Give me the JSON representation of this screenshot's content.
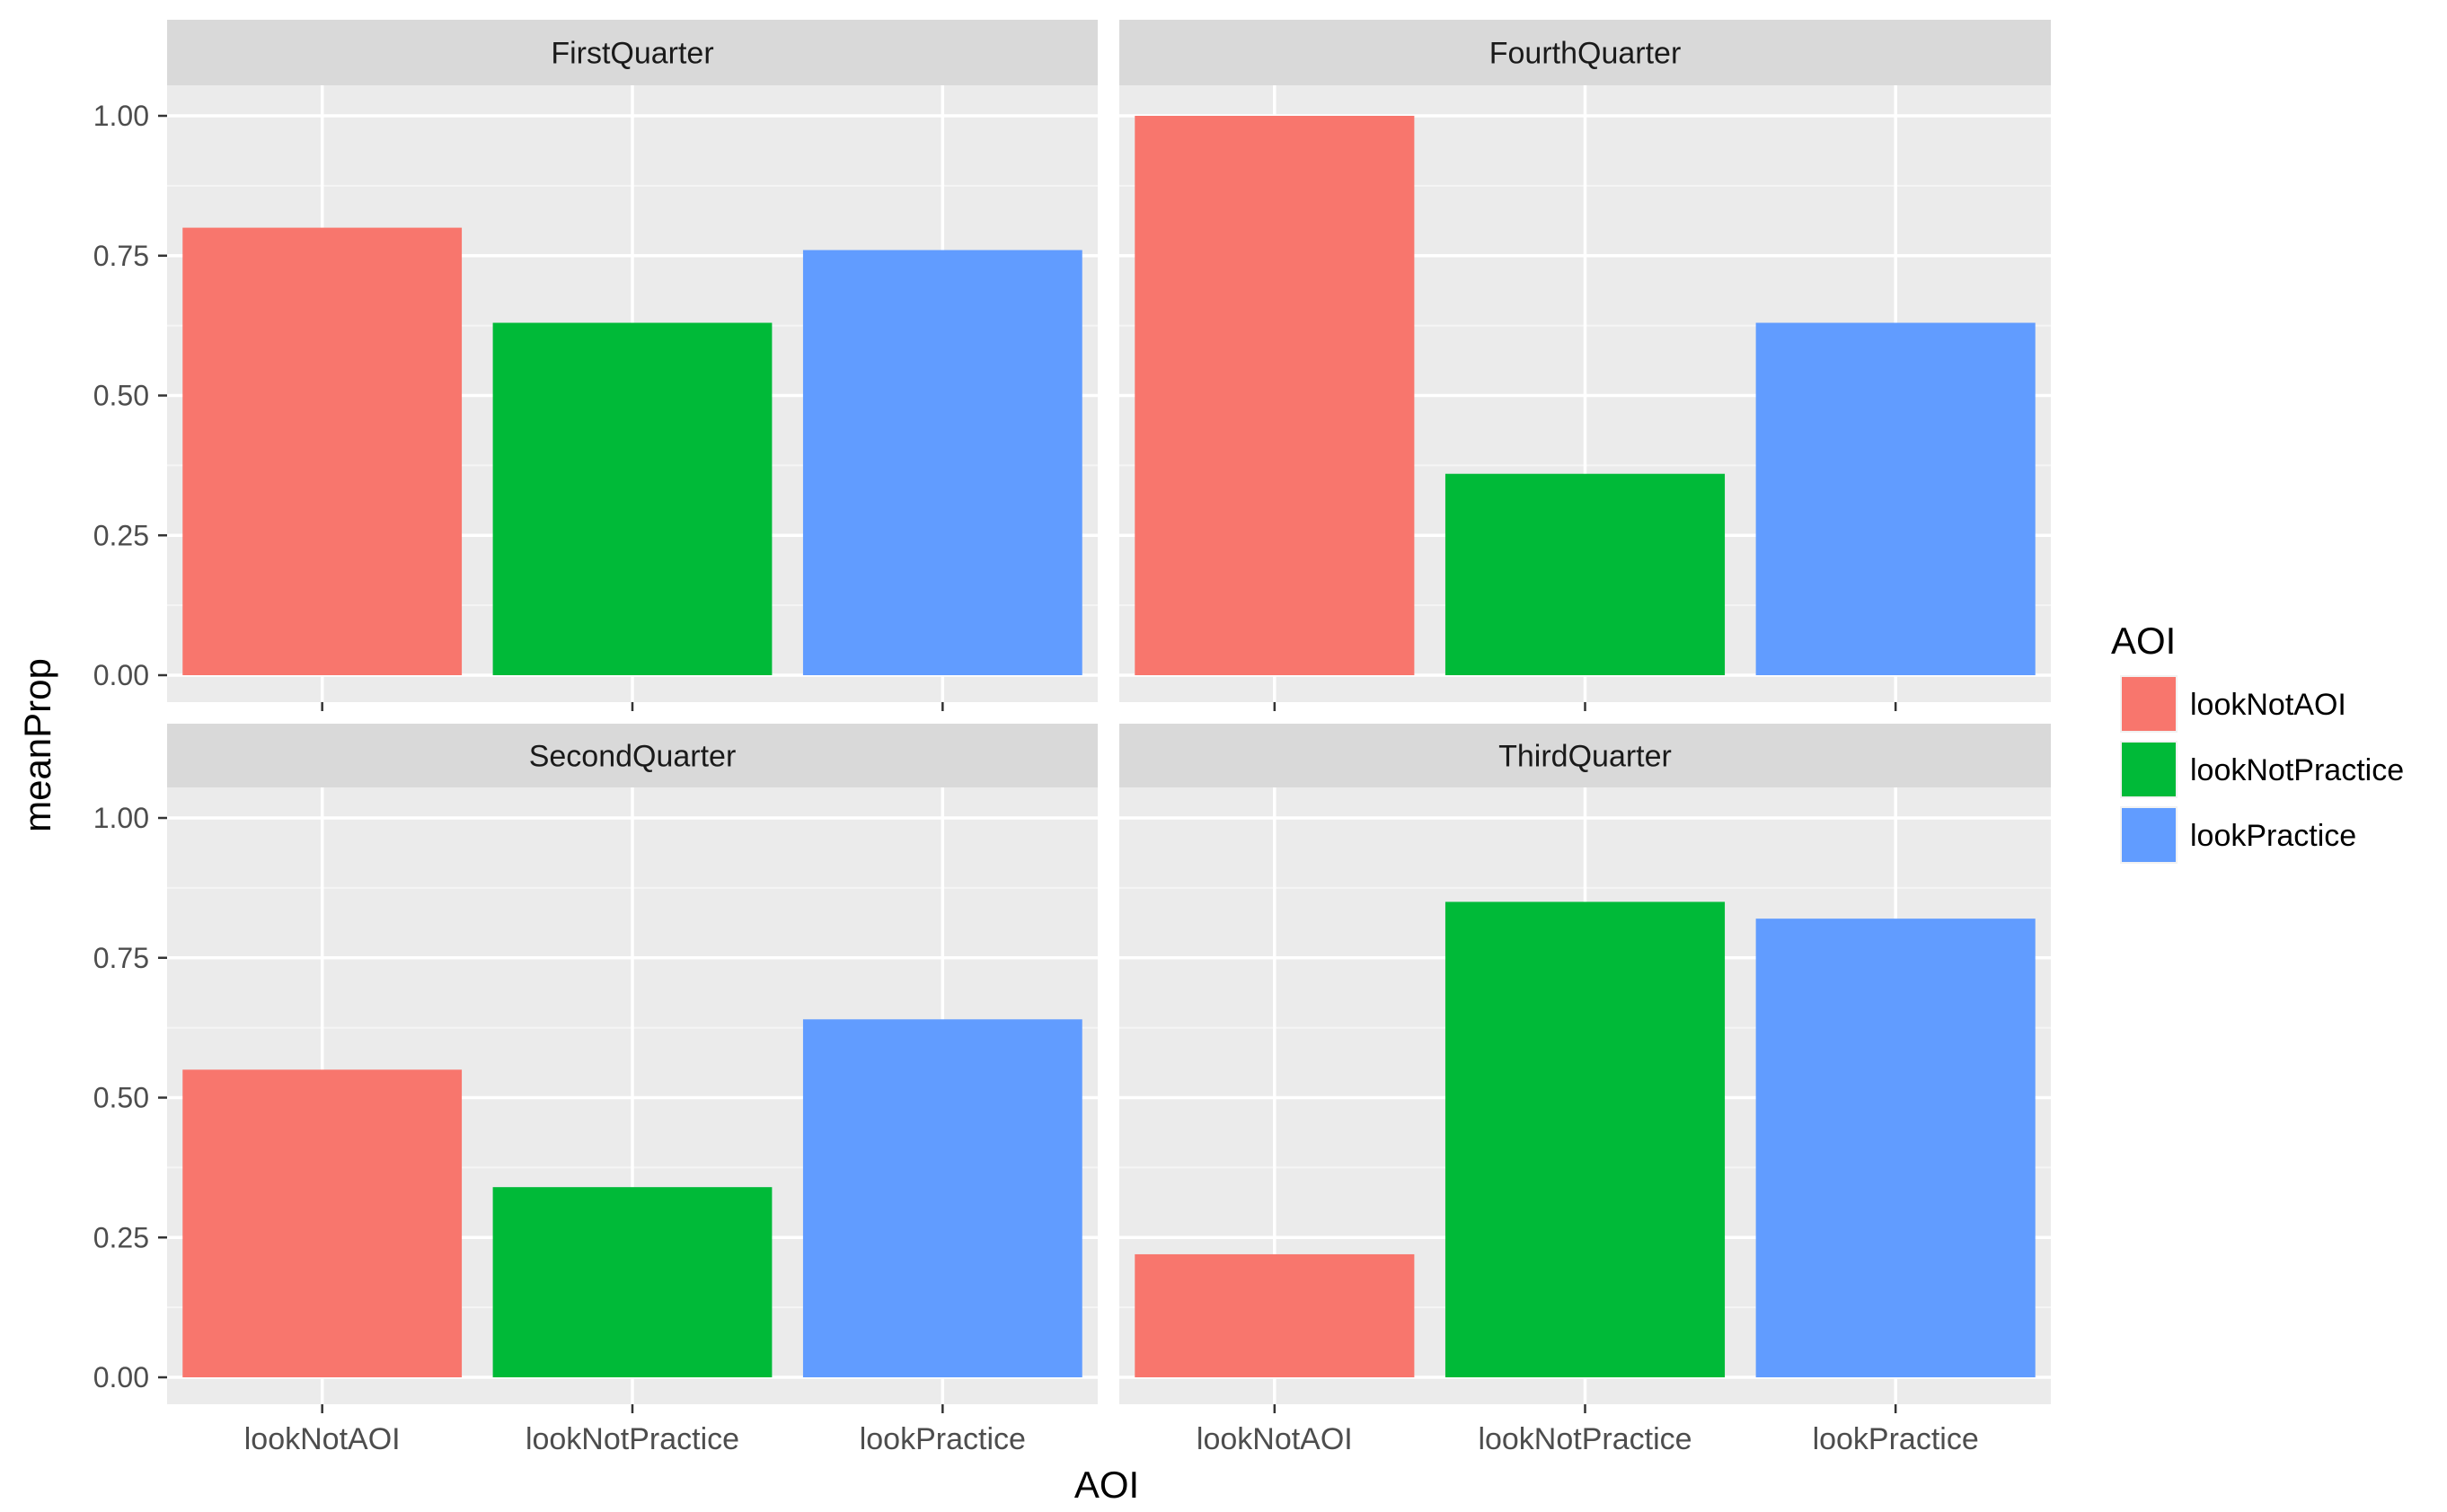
{
  "chart_data": {
    "type": "bar",
    "facet": "wrap",
    "xlabel": "AOI",
    "ylabel": "meanProp",
    "ylim": [
      0,
      1.1
    ],
    "yticks": [
      "0.00",
      "0.25",
      "0.50",
      "0.75",
      "1.00"
    ],
    "ytick_values": [
      0,
      0.25,
      0.5,
      0.75,
      1.0
    ],
    "categories": [
      "lookNotAOI",
      "lookNotPractice",
      "lookPractice"
    ],
    "colors": [
      "#F8766D",
      "#00BA38",
      "#619CFF"
    ],
    "grid": true,
    "legend": {
      "title": "AOI",
      "placement": "right",
      "entries": [
        "lookNotAOI",
        "lookNotPractice",
        "lookPractice"
      ]
    },
    "panels": [
      {
        "title": "FirstQuarter",
        "values": [
          0.8,
          0.63,
          0.76
        ]
      },
      {
        "title": "FourthQuarter",
        "values": [
          1.0,
          0.36,
          0.63
        ]
      },
      {
        "title": "SecondQuarter",
        "values": [
          0.55,
          0.34,
          0.64
        ]
      },
      {
        "title": "ThirdQuarter",
        "values": [
          0.22,
          0.85,
          0.82
        ]
      }
    ]
  }
}
